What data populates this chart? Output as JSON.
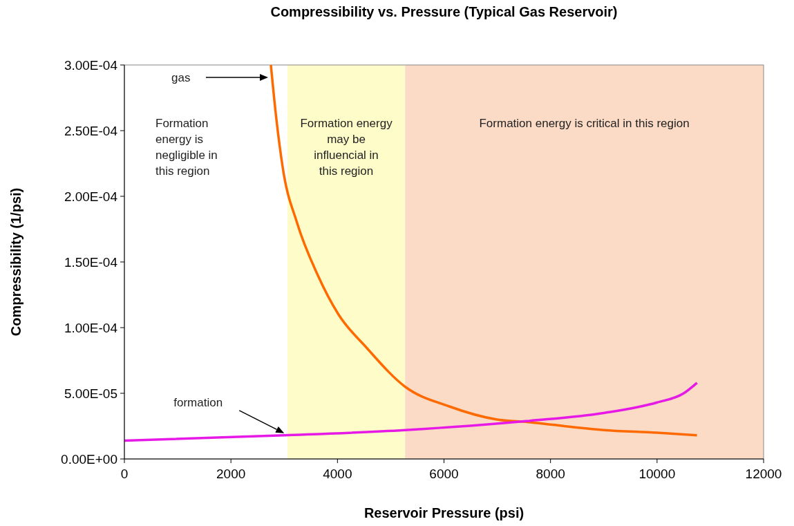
{
  "chart_data": {
    "type": "line",
    "title": "Compressibility vs. Pressure (Typical Gas Reservoir)",
    "xlabel": "Reservoir Pressure (psi)",
    "ylabel": "Compressibility (1/psi)",
    "xlim": [
      0,
      12000
    ],
    "xticks": [
      0,
      2000,
      4000,
      6000,
      8000,
      10000,
      12000
    ],
    "ylim": [
      0,
      0.0003
    ],
    "yticks": [
      {
        "value": 0,
        "label": "0.00E+00"
      },
      {
        "value": 5e-05,
        "label": "5.00E-05"
      },
      {
        "value": 0.0001,
        "label": "1.00E-04"
      },
      {
        "value": 0.00015,
        "label": "1.50E-04"
      },
      {
        "value": 0.0002,
        "label": "2.00E-04"
      },
      {
        "value": 0.00025,
        "label": "2.50E-04"
      },
      {
        "value": 0.0003,
        "label": "3.00E-04"
      }
    ],
    "grid": false,
    "marker": "none",
    "line_style": "solid",
    "bands": [
      {
        "axis": "x",
        "from": 3060,
        "to": 5270,
        "label": "Formation energy may be influencial in this region",
        "color": "#fefcc8"
      },
      {
        "axis": "x",
        "from": 5270,
        "to": 12000,
        "label": "Formation energy is critical in this region",
        "color": "#fbdac6"
      }
    ],
    "series": [
      {
        "color": "#ff6a00",
        "x": [
          2750,
          2850,
          2980,
          3240,
          3630,
          4020,
          4540,
          5270,
          6100,
          7000,
          7600,
          8040,
          9000,
          10000,
          10750
        ],
        "values": [
          0.0003,
          0.00026,
          0.00022,
          0.00018,
          0.00014,
          0.00011,
          8.5e-05,
          5.5e-05,
          4e-05,
          3e-05,
          2.8e-05,
          2.6e-05,
          2.2e-05,
          2e-05,
          1.8e-05
        ]
      },
      {
        "color": "#e619e6",
        "x": [
          0,
          3000,
          5270,
          7600,
          9000,
          10000,
          10500,
          10750
        ],
        "values": [
          1.4e-05,
          1.8e-05,
          2.2e-05,
          2.9e-05,
          3.5e-05,
          4.3e-05,
          5e-05,
          5.8e-05
        ]
      }
    ],
    "annotations": [
      "Formation energy is negligible in this region",
      "gas",
      "formation"
    ]
  }
}
